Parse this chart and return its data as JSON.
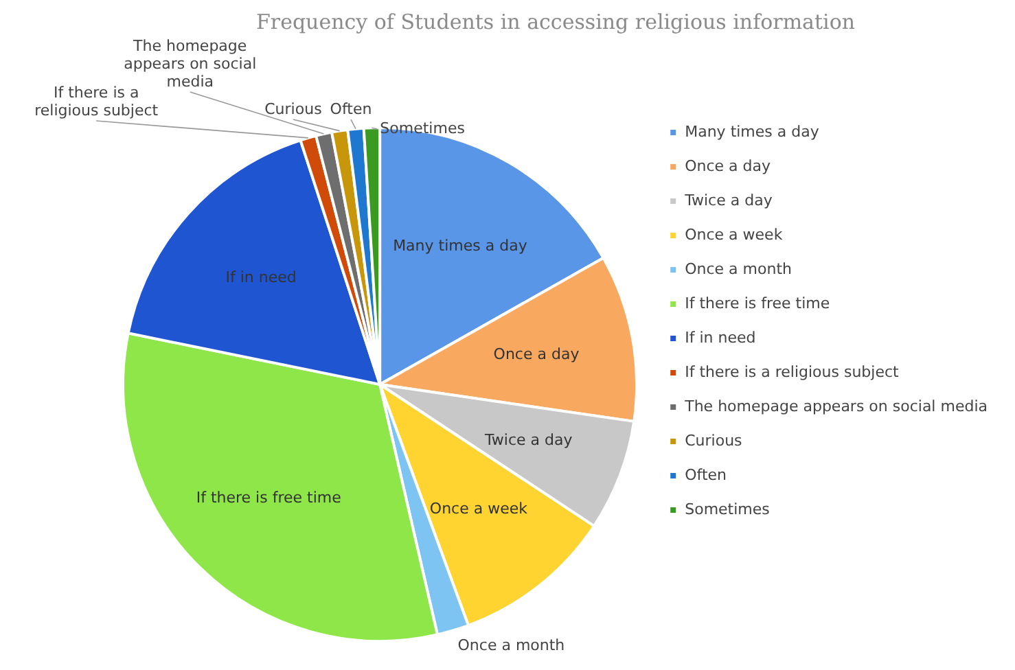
{
  "chart_data": {
    "type": "pie",
    "title": "Frequency of Students in accessing religious information",
    "categories": [
      "Many times a day",
      "Once a day",
      "Twice a day",
      "Once a week",
      "Once a month",
      "If there is free time",
      "If in need",
      "If there is a religious subject",
      "The homepage appears on social media",
      "Curious",
      "Often",
      "Sometimes"
    ],
    "values": [
      16.8,
      10.5,
      7.0,
      10.1,
      2.0,
      31.8,
      16.8,
      1.0,
      1.0,
      1.0,
      1.0,
      1.0
    ],
    "colors": [
      "#5a96e8",
      "#f9a860",
      "#c8c8c8",
      "#ffd330",
      "#7dc4f2",
      "#8ee648",
      "#1f55d0",
      "#d04a0a",
      "#6e6e6e",
      "#c8960a",
      "#1e78d0",
      "#3a9a22"
    ],
    "legend": "right"
  }
}
